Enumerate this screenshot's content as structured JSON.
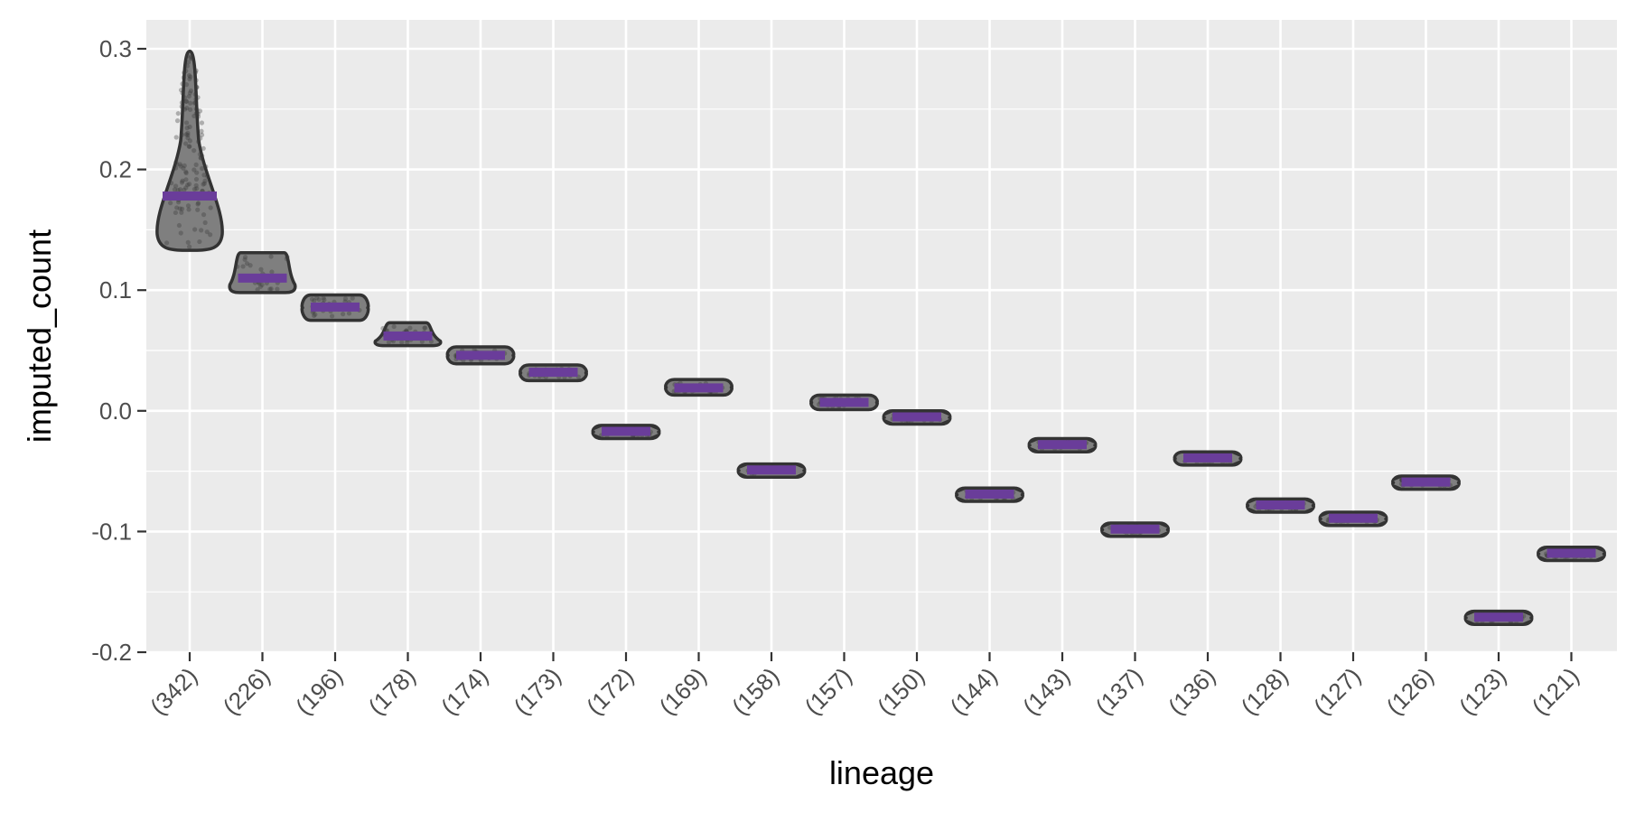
{
  "chart_data": {
    "type": "violin",
    "title": "",
    "xlabel": "lineage",
    "ylabel": "imputed_count",
    "ylim": [
      -0.2,
      0.3
    ],
    "yticks": [
      "-0.2",
      "-0.1",
      "0.0",
      "0.1",
      "0.2",
      "0.3"
    ],
    "ytick_values": [
      -0.2,
      -0.1,
      0.0,
      0.1,
      0.2,
      0.3
    ],
    "grid": true,
    "categories": [
      "(342)",
      "(226)",
      "(196)",
      "(178)",
      "(174)",
      "(173)",
      "(172)",
      "(169)",
      "(158)",
      "(157)",
      "(150)",
      "(144)",
      "(143)",
      "(137)",
      "(136)",
      "(128)",
      "(127)",
      "(126)",
      "(123)",
      "(121)"
    ],
    "violins": [
      {
        "min": 0.133,
        "max": 0.298,
        "median": 0.178
      },
      {
        "min": 0.098,
        "max": 0.131,
        "median": 0.11
      },
      {
        "min": 0.075,
        "max": 0.096,
        "median": 0.086
      },
      {
        "min": 0.054,
        "max": 0.073,
        "median": 0.062
      },
      {
        "min": 0.039,
        "max": 0.053,
        "median": 0.046
      },
      {
        "min": 0.025,
        "max": 0.038,
        "median": 0.032
      },
      {
        "min": -0.023,
        "max": -0.012,
        "median": -0.017
      },
      {
        "min": 0.013,
        "max": 0.026,
        "median": 0.019
      },
      {
        "min": -0.055,
        "max": -0.044,
        "median": -0.049
      },
      {
        "min": 0.001,
        "max": 0.013,
        "median": 0.007
      },
      {
        "min": -0.011,
        "max": 0.0,
        "median": -0.005
      },
      {
        "min": -0.075,
        "max": -0.064,
        "median": -0.069
      },
      {
        "min": -0.034,
        "max": -0.023,
        "median": -0.028
      },
      {
        "min": -0.104,
        "max": -0.093,
        "median": -0.098
      },
      {
        "min": -0.045,
        "max": -0.034,
        "median": -0.039
      },
      {
        "min": -0.084,
        "max": -0.073,
        "median": -0.078
      },
      {
        "min": -0.095,
        "max": -0.084,
        "median": -0.089
      },
      {
        "min": -0.065,
        "max": -0.054,
        "median": -0.059
      },
      {
        "min": -0.177,
        "max": -0.166,
        "median": -0.171
      },
      {
        "min": -0.124,
        "max": -0.113,
        "median": -0.118
      }
    ],
    "colors": {
      "panel": "#ebebeb",
      "grid": "#ffffff",
      "violin_fill": "#7f7f7f",
      "violin_stroke": "#333333",
      "median": "#6a3d9a",
      "points": "#3a3a3a"
    }
  }
}
